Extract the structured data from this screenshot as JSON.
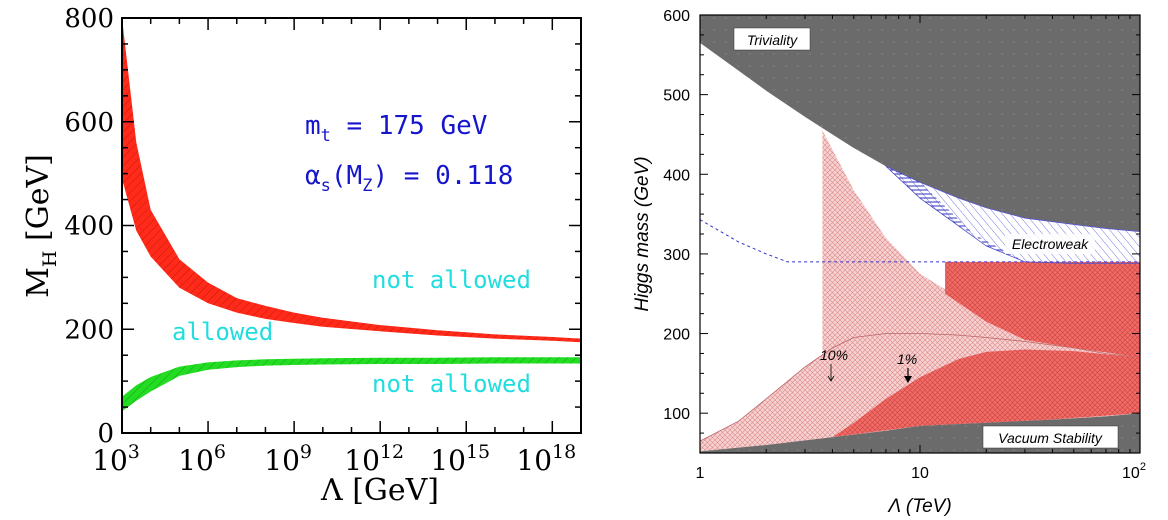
{
  "chart_data": [
    {
      "type": "area",
      "xlabel": "Λ [GeV]",
      "ylabel": "M",
      "ylabel_sub": "H",
      "ylabel_unit": "[GeV]",
      "x_scale": "log10",
      "xlim": [
        1000,
        1e+19
      ],
      "ylim": [
        0,
        800
      ],
      "xtick_labels": [
        {
          "base": "10",
          "exp": "3"
        },
        {
          "base": "10",
          "exp": "6"
        },
        {
          "base": "10",
          "exp": "9"
        },
        {
          "base": "10",
          "exp": "12"
        },
        {
          "base": "10",
          "exp": "15"
        },
        {
          "base": "10",
          "exp": "18"
        }
      ],
      "ytick_labels": [
        "0",
        "200",
        "400",
        "600",
        "800"
      ],
      "annotations": {
        "mt": {
          "sym": "m",
          "sub": "t",
          "rest": " = 175 GeV"
        },
        "alpha": {
          "sym": "α",
          "sub": "s",
          "mid": "(M",
          "sub2": "Z",
          "rest": ") = 0.118"
        },
        "not_allowed_top": "not allowed",
        "allowed": "allowed",
        "not_allowed_bottom": "not allowed"
      },
      "x_log10": [
        3,
        3.5,
        4,
        5,
        6,
        7,
        8,
        9,
        10,
        12,
        14,
        16,
        18,
        19
      ],
      "series": [
        {
          "color": "#ff2a1a",
          "upper": [
            800,
            560,
            430,
            335,
            290,
            260,
            245,
            232,
            222,
            208,
            198,
            190,
            185,
            182
          ],
          "lower": [
            490,
            390,
            340,
            280,
            250,
            232,
            220,
            212,
            205,
            196,
            188,
            182,
            178,
            175
          ]
        },
        {
          "color": "#22dd22",
          "upper": [
            70,
            92,
            108,
            128,
            136,
            140,
            142,
            143,
            144,
            145,
            145,
            146,
            146,
            146
          ],
          "lower": [
            42,
            62,
            80,
            110,
            122,
            127,
            130,
            131,
            132,
            133,
            133,
            134,
            134,
            134
          ]
        }
      ]
    },
    {
      "type": "area",
      "xlabel": "Λ (TeV)",
      "ylabel": "Higgs mass (GeV)",
      "x_scale": "log10",
      "xlim": [
        1,
        100
      ],
      "ylim": [
        50,
        600
      ],
      "xtick_labels": [
        {
          "base": "1",
          "exp": ""
        },
        {
          "base": "10",
          "exp": ""
        },
        {
          "base": "10",
          "exp": "2"
        }
      ],
      "ytick_labels": [
        "100",
        "200",
        "300",
        "400",
        "500",
        "600"
      ],
      "labels": {
        "triviality": "Triviality",
        "electroweak": "Electroweak",
        "vacuum": "Vacuum Stability",
        "pct10": "10%",
        "pct1": "1%"
      },
      "triviality": {
        "x": [
          1,
          1.5,
          2,
          3,
          4,
          5,
          7,
          10,
          15,
          20,
          30,
          50,
          70,
          100
        ],
        "y": [
          565,
          530,
          505,
          472,
          450,
          433,
          410,
          390,
          370,
          358,
          345,
          337,
          332,
          328
        ]
      },
      "vacuum_stability": {
        "x": [
          1,
          2,
          4,
          7,
          10,
          20,
          40,
          70,
          100
        ],
        "y": [
          52,
          60,
          70,
          78,
          84,
          88,
          92,
          96,
          100
        ]
      },
      "dashed_line": {
        "x": [
          1,
          1.5,
          2,
          2.5,
          5,
          10,
          30,
          100
        ],
        "y": [
          343,
          315,
          300,
          290,
          290,
          290,
          290,
          290
        ]
      },
      "region_10pct_upper": {
        "x": [
          1,
          1.5,
          2,
          3,
          4,
          5,
          7,
          10,
          15,
          20,
          30,
          50,
          70,
          100
        ],
        "y": [
          65,
          90,
          118,
          158,
          182,
          195,
          200,
          200,
          198,
          195,
          190,
          182,
          175,
          170
        ]
      },
      "region_1pct_upper": {
        "x": [
          4,
          5,
          7,
          10,
          15,
          20,
          30,
          50,
          70,
          100
        ],
        "y": [
          70,
          88,
          118,
          145,
          168,
          177,
          180,
          178,
          174,
          170
        ]
      },
      "finetune_upper": {
        "x": [
          3.6,
          5,
          7,
          10,
          15,
          20,
          30,
          50,
          70,
          100
        ],
        "y": [
          455,
          380,
          320,
          275,
          245,
          228,
          212,
          195,
          185,
          170
        ]
      },
      "dense_red_upper": {
        "x": [
          13,
          20,
          30,
          50,
          100
        ],
        "y": [
          290,
          290,
          290,
          290,
          290
        ]
      },
      "electroweak_lower": {
        "x": [
          7,
          10,
          15,
          20,
          30,
          50,
          100
        ],
        "y": [
          410,
          370,
          335,
          310,
          290,
          288,
          288
        ]
      }
    }
  ]
}
